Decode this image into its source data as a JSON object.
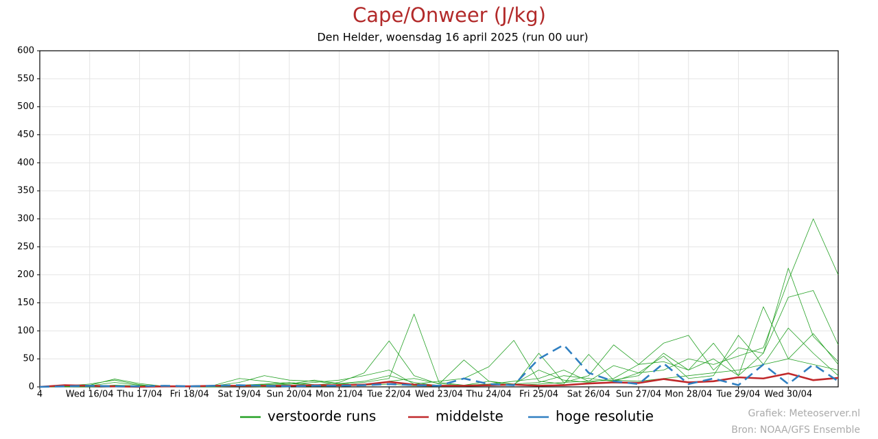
{
  "chart_data": {
    "type": "line",
    "title": "Cape/Onweer (J/kg)",
    "subtitle": "Den Helder, woensdag 16 april 2025 (run 00 uur)",
    "credits": [
      "Grafiek: Meteoserver.nl",
      "Bron: NOAA/GFS Ensemble"
    ],
    "x": [
      0,
      12,
      24,
      36,
      48,
      60,
      72,
      84,
      96,
      108,
      120,
      132,
      144,
      156,
      168,
      180,
      192,
      204,
      216,
      228,
      240,
      252,
      264,
      276,
      288,
      300,
      312,
      324,
      336,
      348,
      360,
      372,
      384
    ],
    "xlim": [
      0,
      384
    ],
    "xticks": [
      {
        "value": 0,
        "label": "4"
      },
      {
        "value": 24,
        "label": "Wed 16/04"
      },
      {
        "value": 48,
        "label": "Thu 17/04"
      },
      {
        "value": 72,
        "label": "Fri 18/04"
      },
      {
        "value": 96,
        "label": "Sat 19/04"
      },
      {
        "value": 120,
        "label": "Sun 20/04"
      },
      {
        "value": 144,
        "label": "Mon 21/04"
      },
      {
        "value": 168,
        "label": "Tue 22/04"
      },
      {
        "value": 192,
        "label": "Wed 23/04"
      },
      {
        "value": 216,
        "label": "Thu 24/04"
      },
      {
        "value": 240,
        "label": "Fri 25/04"
      },
      {
        "value": 264,
        "label": "Sat 26/04"
      },
      {
        "value": 288,
        "label": "Sun 27/04"
      },
      {
        "value": 312,
        "label": "Mon 28/04"
      },
      {
        "value": 336,
        "label": "Tue 29/04"
      },
      {
        "value": 360,
        "label": "Wed 30/04"
      }
    ],
    "ylim": [
      0,
      600
    ],
    "yticks": [
      0,
      50,
      100,
      150,
      200,
      250,
      300,
      350,
      400,
      450,
      500,
      550,
      600
    ],
    "grid": true,
    "series": [
      {
        "name": "verstoorde runs",
        "color": "#22a022",
        "runs": [
          [
            0,
            2,
            5,
            12,
            4,
            0,
            0,
            1,
            3,
            5,
            8,
            4,
            2,
            3,
            10,
            15,
            6,
            2,
            3,
            5,
            30,
            12,
            8,
            15,
            40,
            45,
            30,
            50,
            20,
            60,
            160,
            172,
            75
          ],
          [
            0,
            1,
            3,
            14,
            6,
            1,
            0,
            2,
            8,
            20,
            12,
            10,
            5,
            8,
            15,
            130,
            8,
            3,
            10,
            5,
            8,
            20,
            15,
            10,
            25,
            30,
            50,
            40,
            55,
            70,
            190,
            300,
            200
          ],
          [
            0,
            0,
            2,
            8,
            3,
            0,
            1,
            0,
            2,
            4,
            6,
            3,
            8,
            25,
            82,
            20,
            5,
            48,
            10,
            2,
            60,
            8,
            20,
            75,
            40,
            78,
            92,
            30,
            70,
            60,
            212,
            90,
            45
          ],
          [
            0,
            1,
            1,
            3,
            2,
            1,
            0,
            3,
            15,
            10,
            5,
            8,
            12,
            20,
            30,
            5,
            10,
            15,
            36,
            83,
            10,
            5,
            58,
            12,
            20,
            60,
            30,
            78,
            20,
            143,
            50,
            95,
            40
          ],
          [
            0,
            0,
            1,
            2,
            0,
            0,
            2,
            1,
            3,
            2,
            5,
            12,
            6,
            10,
            20,
            8,
            2,
            3,
            5,
            10,
            15,
            30,
            10,
            38,
            25,
            55,
            15,
            20,
            92,
            40,
            105,
            60,
            20
          ],
          [
            0,
            0,
            0,
            1,
            0,
            0,
            0,
            0,
            1,
            0,
            2,
            1,
            2,
            3,
            5,
            2,
            1,
            1,
            2,
            3,
            5,
            8,
            10,
            12,
            10,
            15,
            20,
            25,
            30,
            40,
            50,
            40,
            30
          ]
        ]
      },
      {
        "name": "middelste",
        "color": "#c0282a",
        "values": [
          0,
          3,
          2,
          1,
          0,
          1,
          1,
          2,
          2,
          2,
          2,
          3,
          3,
          4,
          9,
          4,
          2,
          2,
          3,
          4,
          2,
          3,
          6,
          8,
          7,
          14,
          8,
          10,
          17,
          15,
          24,
          12,
          16
        ]
      },
      {
        "name": "hoge resolutie",
        "color": "#2f7fc1",
        "dashed": true,
        "values": [
          0,
          1,
          2,
          1,
          1,
          2,
          1,
          2,
          3,
          2,
          1,
          2,
          2,
          3,
          5,
          3,
          2,
          15,
          5,
          3,
          50,
          75,
          25,
          10,
          5,
          42,
          5,
          15,
          3,
          40,
          5,
          40,
          10
        ]
      }
    ]
  }
}
